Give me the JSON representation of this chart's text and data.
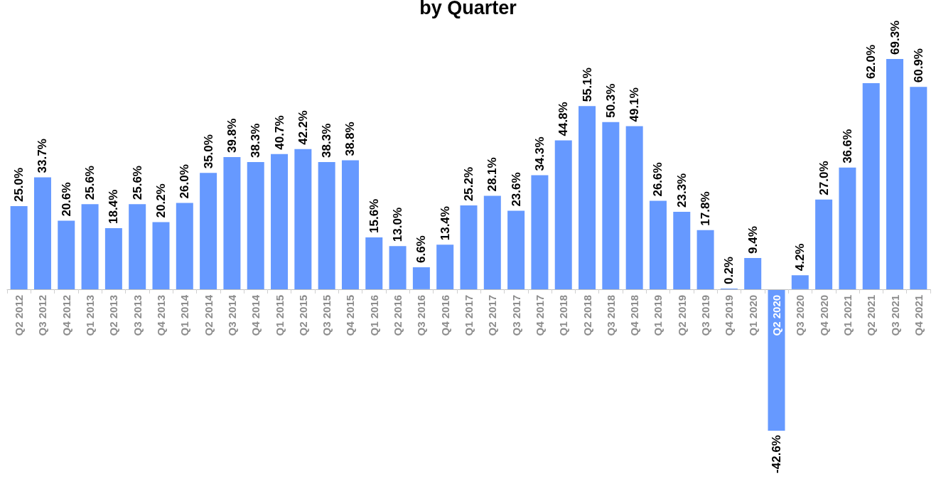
{
  "chart_data": {
    "type": "bar",
    "title": "by Quarter",
    "categories": [
      "Q2 2012",
      "Q3 2012",
      "Q4 2012",
      "Q1 2013",
      "Q2 2013",
      "Q3 2013",
      "Q4 2013",
      "Q1 2014",
      "Q2 2014",
      "Q3 2014",
      "Q4 2014",
      "Q1 2015",
      "Q2 2015",
      "Q3 2015",
      "Q4 2015",
      "Q1 2016",
      "Q2 2016",
      "Q3 2016",
      "Q4 2016",
      "Q1 2017",
      "Q2 2017",
      "Q3 2017",
      "Q4 2017",
      "Q1 2018",
      "Q2 2018",
      "Q3 2018",
      "Q4 2018",
      "Q1 2019",
      "Q2 2019",
      "Q3 2019",
      "Q4 2019",
      "Q1 2020",
      "Q2 2020",
      "Q3 2020",
      "Q4 2020",
      "Q1 2021",
      "Q2 2021",
      "Q3 2021",
      "Q4 2021"
    ],
    "values": [
      25.0,
      33.7,
      20.6,
      25.6,
      18.4,
      25.6,
      20.2,
      26.0,
      35.0,
      39.8,
      38.3,
      40.7,
      42.2,
      38.3,
      38.8,
      15.6,
      13.0,
      6.6,
      13.4,
      25.2,
      28.1,
      23.6,
      34.3,
      44.8,
      55.1,
      50.3,
      49.1,
      26.6,
      23.3,
      17.8,
      0.2,
      9.4,
      -42.6,
      4.2,
      27.0,
      36.6,
      62.0,
      69.3,
      60.9
    ],
    "value_labels": [
      "25.0%",
      "33.7%",
      "20.6%",
      "25.6%",
      "18.4%",
      "25.6%",
      "20.2%",
      "26.0%",
      "35.0%",
      "39.8%",
      "38.3%",
      "40.7%",
      "42.2%",
      "38.3%",
      "38.8%",
      "15.6%",
      "13.0%",
      "6.6%",
      "13.4%",
      "25.2%",
      "28.1%",
      "23.6%",
      "34.3%",
      "44.8%",
      "55.1%",
      "50.3%",
      "49.1%",
      "26.6%",
      "23.3%",
      "17.8%",
      "0.2%",
      "9.4%",
      "-42.6%",
      "4.2%",
      "27.0%",
      "36.6%",
      "62.0%",
      "69.3%",
      "60.9%"
    ],
    "color": "#6699ff",
    "grid": false
  }
}
